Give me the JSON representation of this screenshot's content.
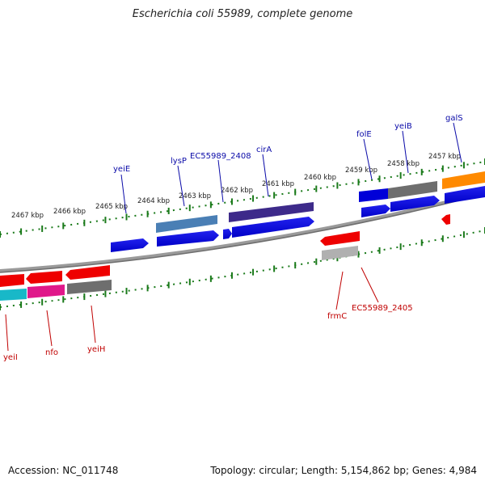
{
  "title": "Escherichia coli 55989, complete genome",
  "footer": {
    "accession": "Accession: NC_011748",
    "summary": "Topology: circular; Length: 5,154,862 bp; Genes: 4,984"
  },
  "ruler": {
    "labels": [
      "2467 kbp",
      "2466 kbp",
      "2465 kbp",
      "2464 kbp",
      "2463 kbp",
      "2462 kbp",
      "2461 kbp",
      "2460 kbp",
      "2459 kbp",
      "2458 kbp",
      "2457 kbp"
    ]
  },
  "genes_top": [
    "yeiE",
    "lysP",
    "EC55989_2408",
    "cirA",
    "folE",
    "yeiB",
    "galS"
  ],
  "genes_bottom": [
    "yeiI",
    "nfo",
    "yeiH",
    "frmC",
    "EC55989_2405"
  ],
  "colors": {
    "top_label": "#0a0aa8",
    "bottom_label": "#c00000",
    "tick": "#1a7a1a",
    "backbone": "#8a8a8a"
  }
}
